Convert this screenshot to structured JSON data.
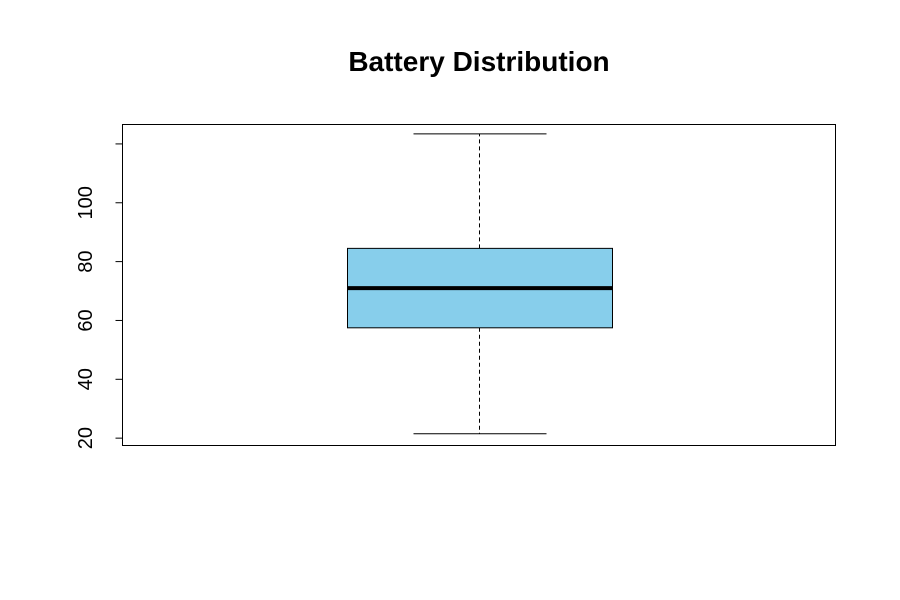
{
  "chart_data": {
    "type": "box",
    "title": "Battery Distribution",
    "xlabel": "",
    "ylabel": "",
    "y_ticks": [
      "20",
      "40",
      "60",
      "80",
      "100"
    ],
    "y_tick_values": [
      20,
      40,
      60,
      80,
      100
    ],
    "ylim": [
      17.5,
      126.6
    ],
    "grid": false,
    "series": [
      {
        "whisker_low": 21.5,
        "q1": 57.5,
        "median": 71,
        "q3": 84.5,
        "whisker_high": 123.4
      }
    ],
    "colors": {
      "box_fill": "#87CEEB",
      "stroke": "#000000"
    }
  }
}
